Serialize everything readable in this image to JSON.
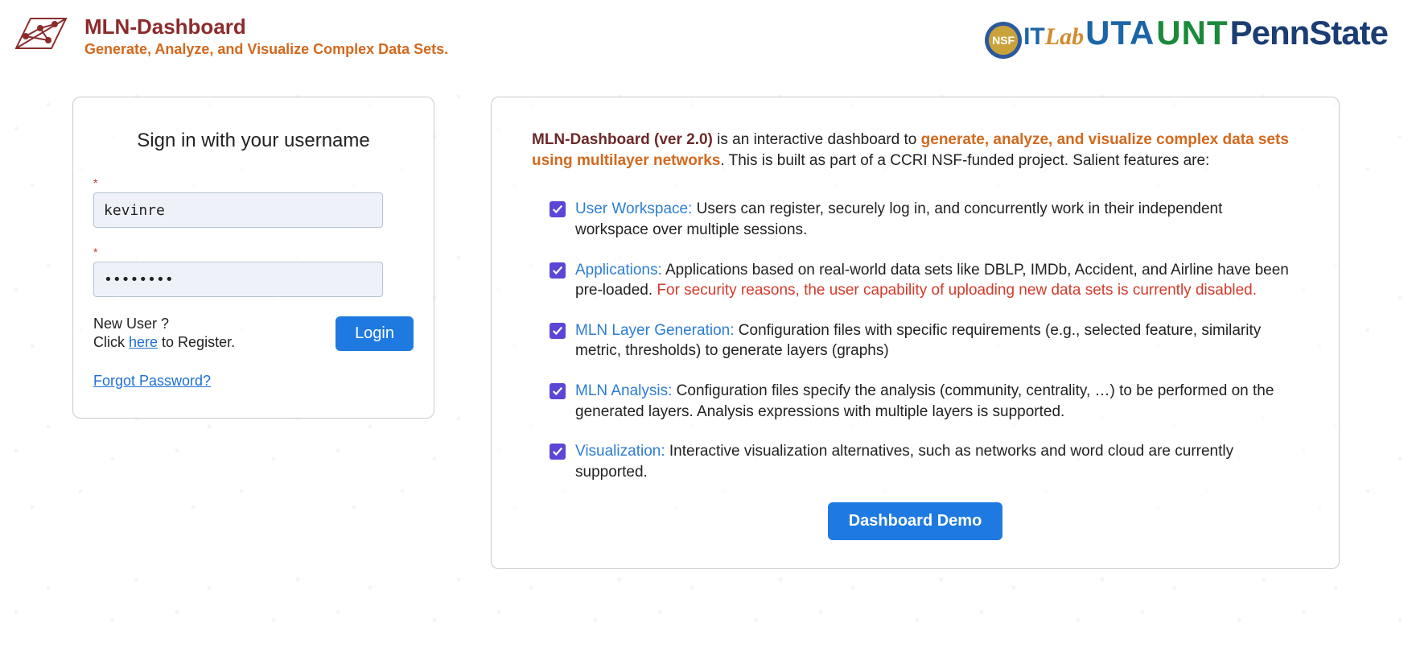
{
  "header": {
    "title": "MLN-Dashboard",
    "tagline": "Generate, Analyze, and Visualize Complex Data Sets.",
    "logo_stroke": "#8c2b2b",
    "partners": {
      "nsf_label": "NSF",
      "itlab_it": "IT",
      "itlab_lab": "Lab",
      "uta": "UTA",
      "unt": "UNT",
      "pennstate": "PennState"
    }
  },
  "login": {
    "heading": "Sign in with your username",
    "username_required_mark": "*",
    "username_value": "kevinre",
    "password_required_mark": "*",
    "password_value": "••••••••",
    "new_user_line1": "New User ?",
    "new_user_line2_pre": "Click ",
    "new_user_link_text": "here",
    "new_user_line2_post": " to Register.",
    "login_button": "Login",
    "forgot_link": "Forgot Password?"
  },
  "info": {
    "prod_name": "MLN-Dashboard (ver 2.0)",
    "intro_plain_1": " is an interactive dashboard to ",
    "intro_highlight": "generate, analyze, and visualize complex data sets using multilayer networks",
    "intro_plain_2": ". This is built as part of a CCRI NSF-funded project. Salient features are:",
    "demo_button": "Dashboard Demo",
    "features": [
      {
        "label": "User Workspace:",
        "text": " Users can register, securely log in, and concurrently work in their independent workspace over multiple sessions.",
        "warn": ""
      },
      {
        "label": "Applications:",
        "text": " Applications based on real-world data sets like DBLP, IMDb, Accident, and Airline have been pre-loaded. ",
        "warn": "For security reasons, the user capability of uploading new data sets is currently disabled."
      },
      {
        "label": "MLN Layer Generation:",
        "text": " Configuration files with specific requirements (e.g., selected feature, similarity metric, thresholds) to generate layers (graphs)",
        "warn": ""
      },
      {
        "label": "MLN Analysis:",
        "text": " Configuration files specify the analysis (community, centrality, …) to be performed on the generated layers. Analysis expressions with multiple layers is supported.",
        "warn": ""
      },
      {
        "label": "Visualization:",
        "text": " Interactive visualization alternatives, such as networks and word cloud are currently supported.",
        "warn": ""
      }
    ]
  },
  "styling": {
    "accent_blue": "#1e7ae0",
    "link_blue": "#1e6fd6",
    "brand_maroon": "#8c2b2b",
    "brand_orange": "#d2691e",
    "check_purple": "#5b46d6",
    "feature_label_blue": "#2d7dd2",
    "warn_red": "#d23b2c",
    "input_bg": "#eef2f8",
    "input_border": "#b8c4d3",
    "panel_border": "#cccccc"
  }
}
